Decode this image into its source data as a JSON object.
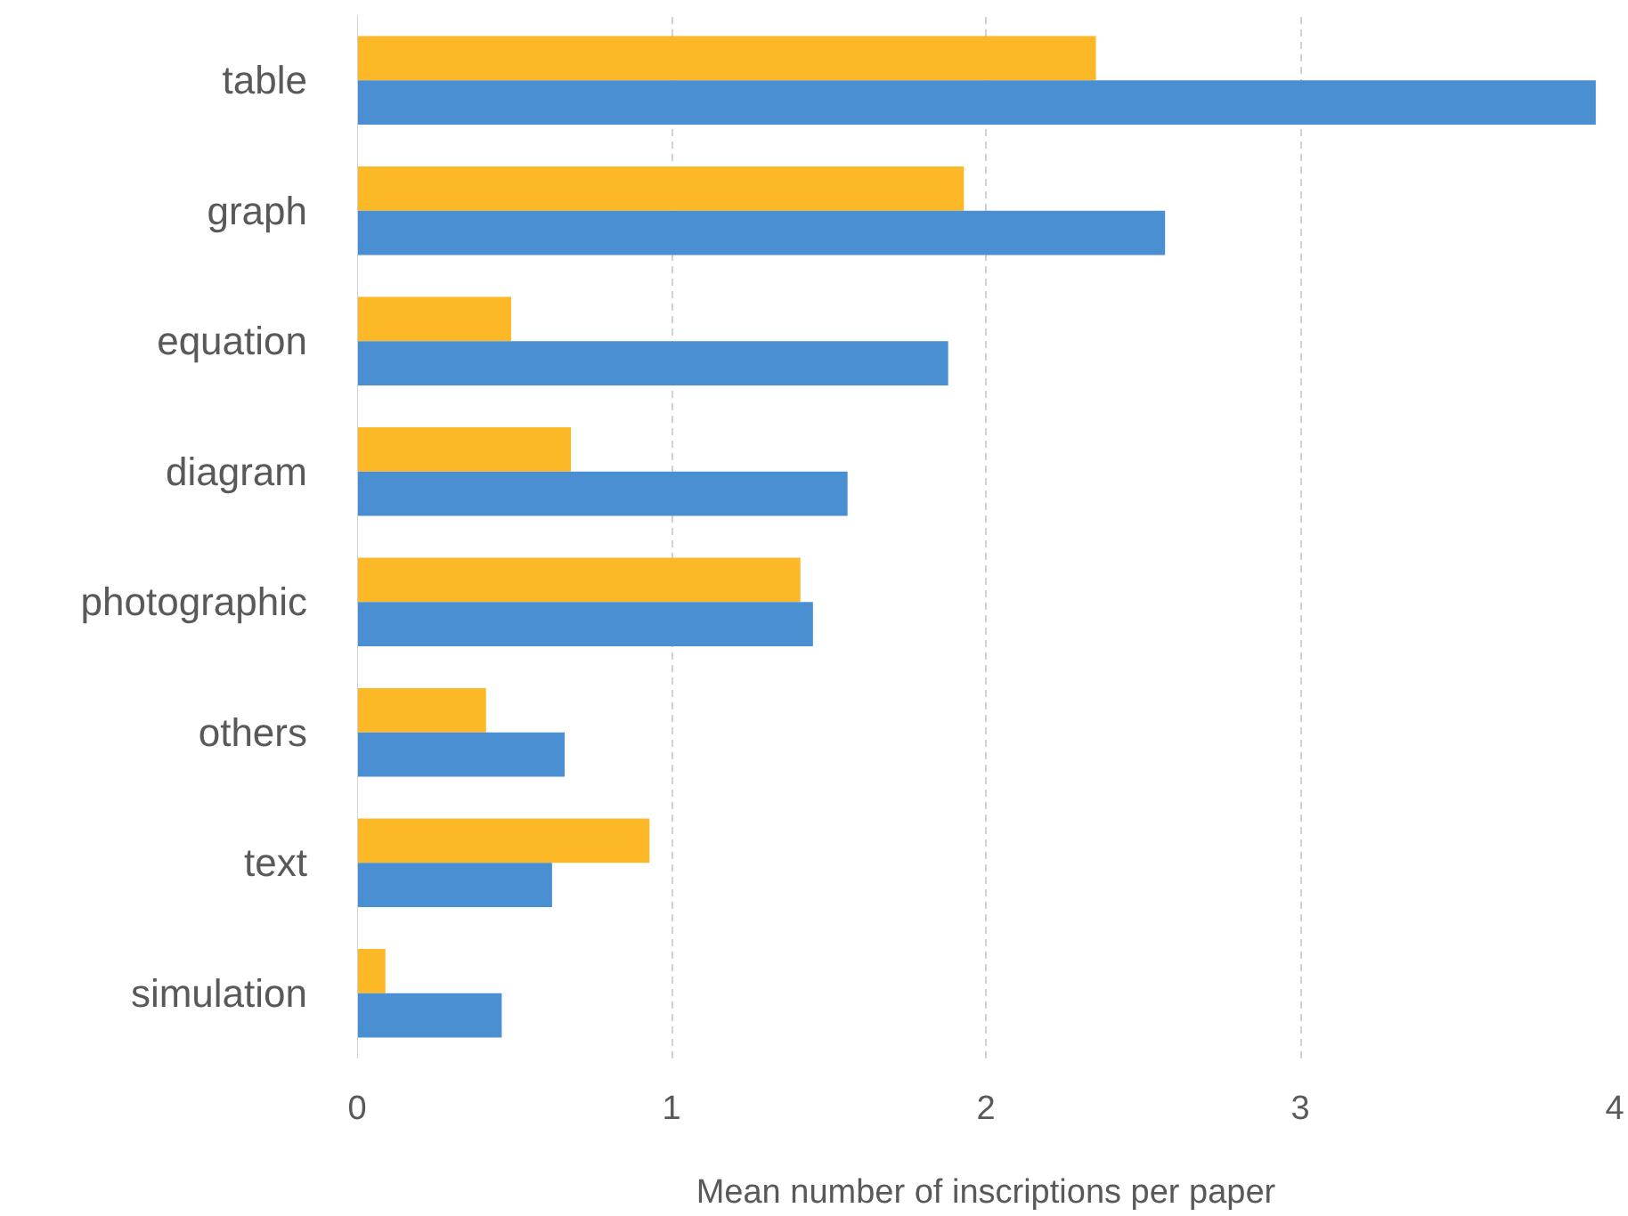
{
  "chart_data": {
    "type": "bar",
    "orientation": "horizontal",
    "xlabel": "Mean number of inscriptions per paper",
    "categories": [
      "table",
      "graph",
      "equation",
      "diagram",
      "photographic",
      "others",
      "text",
      "simulation"
    ],
    "series": [
      {
        "color": "#fdb827",
        "values": [
          2.35,
          1.93,
          0.49,
          0.68,
          1.41,
          0.41,
          0.93,
          0.09
        ]
      },
      {
        "color": "#4a8fd1",
        "values": [
          3.94,
          2.57,
          1.88,
          1.56,
          1.45,
          0.66,
          0.62,
          0.46
        ]
      }
    ],
    "xlim": [
      0,
      4
    ],
    "xticks": [
      0,
      1,
      2,
      3,
      4
    ],
    "grid": "x"
  }
}
